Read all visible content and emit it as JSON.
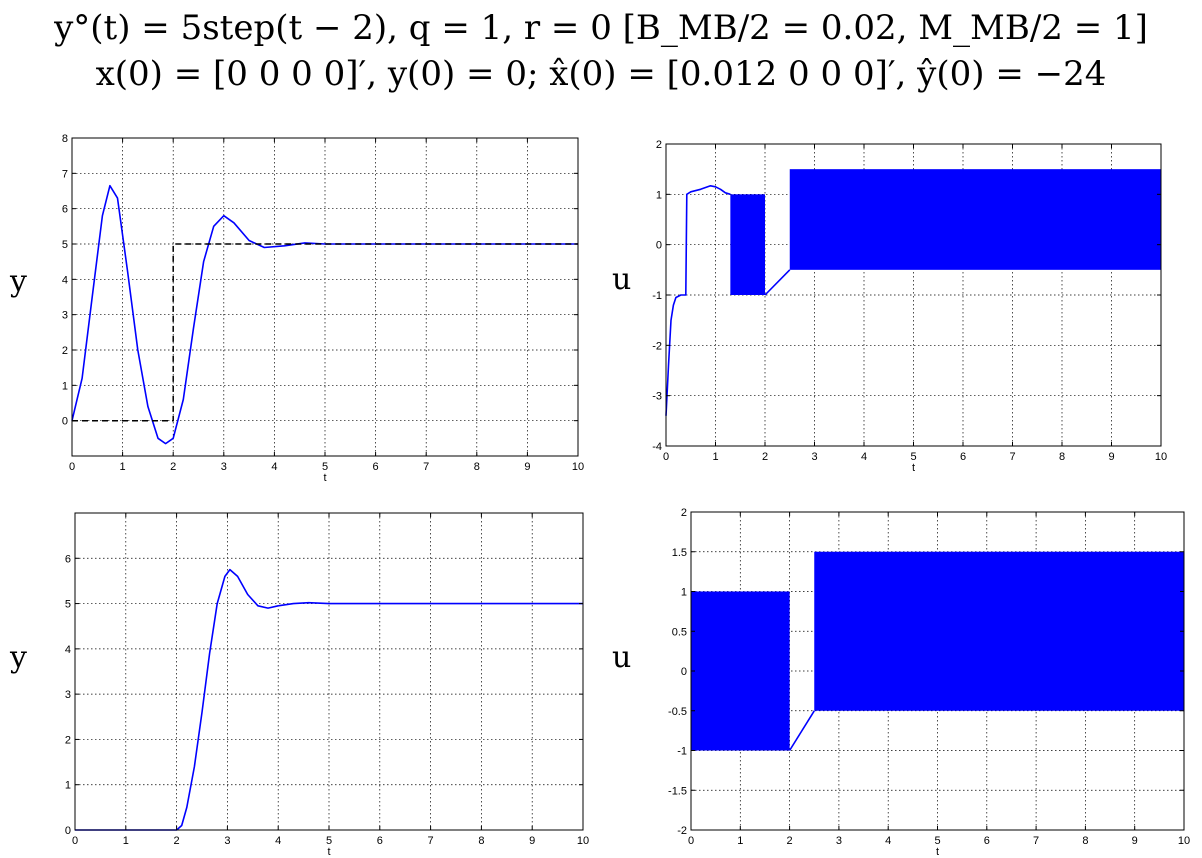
{
  "header": {
    "line1": "y°(t) = 5step(t − 2), q = 1, r = 0 [B_MB/2 = 0.02, M_MB/2 = 1]",
    "line2": "x(0) = [0 0 0 0]′, y(0) = 0;  x̂(0) = [0.012 0 0 0]′, ŷ(0) = −24"
  },
  "chart_data": [
    {
      "id": "top-left",
      "type": "line",
      "ylabel": "y",
      "xlabel": "t",
      "xlim": [
        0,
        10
      ],
      "ylim": [
        -1,
        8
      ],
      "xticks": [
        0,
        1,
        2,
        3,
        4,
        5,
        6,
        7,
        8,
        9,
        10
      ],
      "yticks": [
        0,
        1,
        2,
        3,
        4,
        5,
        6,
        7,
        8
      ],
      "grid": true,
      "series": [
        {
          "style": "solid",
          "color": "#0000ff",
          "x": [
            0,
            0.2,
            0.4,
            0.6,
            0.75,
            0.9,
            1.1,
            1.3,
            1.5,
            1.7,
            1.85,
            2.0,
            2.2,
            2.4,
            2.6,
            2.8,
            3.0,
            3.2,
            3.5,
            3.8,
            4.2,
            4.6,
            5,
            6,
            8,
            10
          ],
          "y": [
            0,
            1.2,
            3.5,
            5.8,
            6.65,
            6.3,
            4.2,
            2.0,
            0.4,
            -0.5,
            -0.65,
            -0.5,
            0.6,
            2.6,
            4.5,
            5.5,
            5.8,
            5.6,
            5.1,
            4.9,
            4.95,
            5.03,
            5.0,
            5.0,
            5.0,
            5.0
          ]
        },
        {
          "style": "dashed",
          "color": "#000000",
          "x": [
            0,
            2,
            2,
            10
          ],
          "y": [
            0,
            0,
            5,
            5
          ]
        }
      ]
    },
    {
      "id": "top-right",
      "type": "line",
      "ylabel": "u",
      "xlabel": "t",
      "xlim": [
        0,
        10
      ],
      "ylim": [
        -4,
        2
      ],
      "xticks": [
        0,
        1,
        2,
        3,
        4,
        5,
        6,
        7,
        8,
        9,
        10
      ],
      "yticks": [
        -4,
        -3,
        -2,
        -1,
        0,
        1,
        2
      ],
      "grid": true,
      "series": [
        {
          "style": "solid",
          "color": "#0000ff",
          "x": [
            0,
            0.05,
            0.1,
            0.15,
            0.2,
            0.3,
            0.4,
            0.42,
            0.5,
            0.7,
            0.9,
            1.0,
            1.1,
            1.2,
            1.3
          ],
          "y": [
            -3.4,
            -2.4,
            -1.5,
            -1.2,
            -1.05,
            -1.0,
            -1.0,
            1.0,
            1.05,
            1.1,
            1.17,
            1.15,
            1.1,
            1.03,
            1.0
          ]
        },
        {
          "style": "solid",
          "color": "#0000ff",
          "x": [
            2.0,
            2.5
          ],
          "y": [
            -1.0,
            -0.5
          ]
        }
      ],
      "bands": [
        {
          "x": [
            1.3,
            2.0
          ],
          "y": [
            -1.0,
            1.0
          ]
        },
        {
          "x": [
            2.5,
            10.0
          ],
          "y": [
            -0.5,
            1.5
          ]
        }
      ]
    },
    {
      "id": "bottom-left",
      "type": "line",
      "ylabel": "y",
      "xlabel": "t",
      "xlim": [
        0,
        10
      ],
      "ylim": [
        0,
        7
      ],
      "xticks": [
        0,
        1,
        2,
        3,
        4,
        5,
        6,
        7,
        8,
        9,
        10
      ],
      "yticks": [
        0,
        1,
        2,
        3,
        4,
        5,
        6
      ],
      "grid": true,
      "series": [
        {
          "style": "solid",
          "color": "#0000ff",
          "x": [
            0,
            2.0,
            2.1,
            2.2,
            2.35,
            2.5,
            2.65,
            2.8,
            2.95,
            3.05,
            3.2,
            3.4,
            3.6,
            3.8,
            4.0,
            4.3,
            4.6,
            5,
            6,
            8,
            10
          ],
          "y": [
            0,
            0,
            0.1,
            0.5,
            1.4,
            2.6,
            3.9,
            5.0,
            5.6,
            5.75,
            5.6,
            5.2,
            4.95,
            4.9,
            4.95,
            5.0,
            5.02,
            5.0,
            5.0,
            5.0,
            5.0
          ]
        }
      ]
    },
    {
      "id": "bottom-right",
      "type": "line",
      "ylabel": "u",
      "xlabel": "t",
      "xlim": [
        0,
        10
      ],
      "ylim": [
        -2,
        2
      ],
      "xticks": [
        0,
        1,
        2,
        3,
        4,
        5,
        6,
        7,
        8,
        9,
        10
      ],
      "yticks": [
        -2,
        -1.5,
        -1,
        -0.5,
        0,
        0.5,
        1,
        1.5,
        2
      ],
      "grid": true,
      "series": [
        {
          "style": "solid",
          "color": "#0000ff",
          "x": [
            2.0,
            2.5
          ],
          "y": [
            -1.0,
            -0.5
          ]
        }
      ],
      "bands": [
        {
          "x": [
            0.0,
            2.0
          ],
          "y": [
            -1.0,
            1.0
          ]
        },
        {
          "x": [
            2.5,
            10.0
          ],
          "y": [
            -0.5,
            1.5
          ]
        }
      ]
    }
  ]
}
